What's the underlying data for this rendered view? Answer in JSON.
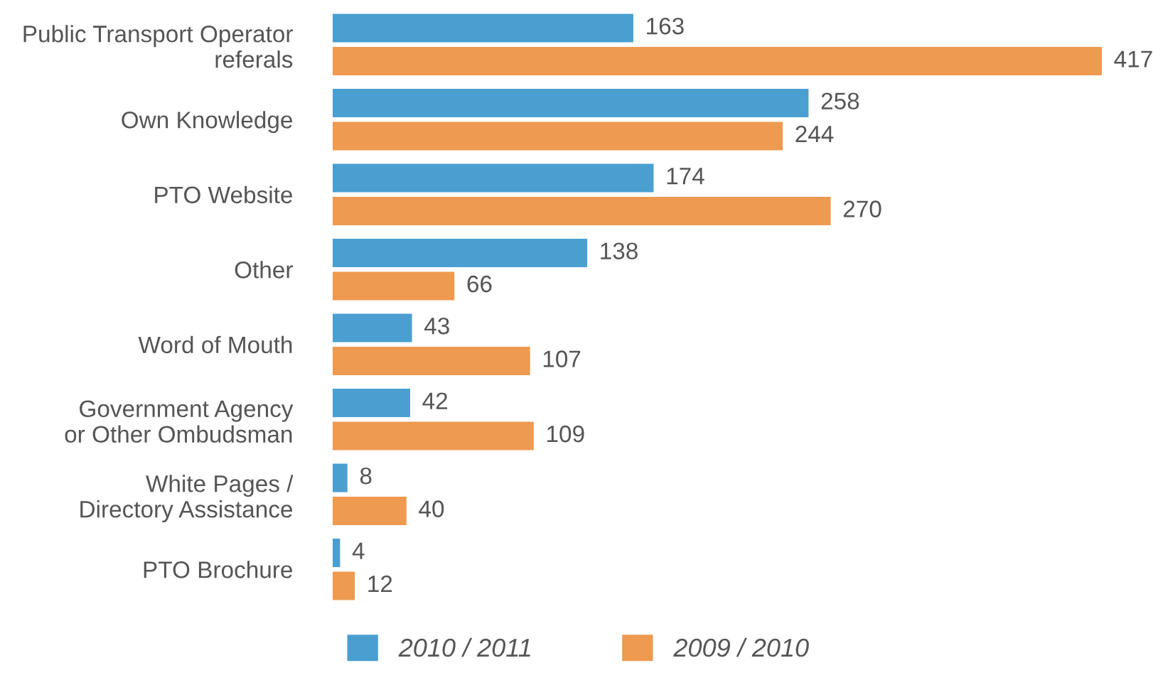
{
  "chart_data": {
    "type": "bar",
    "orientation": "horizontal",
    "categories": [
      "Public Transport Operator\nreferals",
      "Own Knowledge",
      "PTO Website",
      "Other",
      "Word of Mouth",
      "Government Agency\nor Other Ombudsman",
      "White Pages /\nDirectory Assistance",
      "PTO Brochure"
    ],
    "series": [
      {
        "name": "2010 / 2011",
        "color": "#4a9fd0",
        "values": [
          163,
          258,
          174,
          138,
          43,
          42,
          8,
          4
        ]
      },
      {
        "name": "2009 / 2010",
        "color": "#ee9a50",
        "values": [
          417,
          244,
          270,
          66,
          107,
          109,
          40,
          12
        ]
      }
    ],
    "data_labels": true,
    "legend": "bottom",
    "tick_labels": "y",
    "grid": false
  }
}
